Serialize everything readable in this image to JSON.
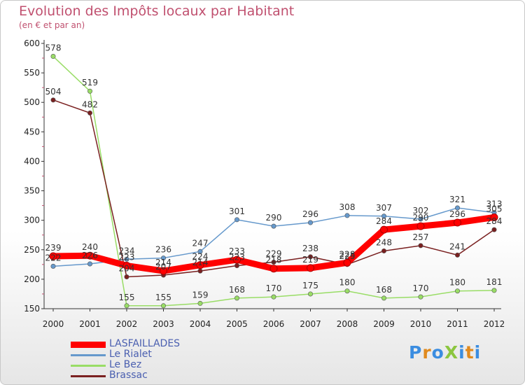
{
  "header": {
    "title": "Evolution des Impôts locaux par Habitant",
    "subtitle": "(en € et par an)"
  },
  "logo": {
    "text": "ProXiti",
    "letters": [
      "P",
      "r",
      "o",
      "X",
      "i",
      "t",
      "i"
    ],
    "colors": [
      "#3b8de0",
      "#e08a1e",
      "#3b8de0",
      "#8cc63f",
      "#3b8de0",
      "#e08a1e",
      "#3b8de0"
    ]
  },
  "chart_data": {
    "type": "line",
    "title": "Evolution des Impôts locaux par Habitant",
    "subtitle": "(en € et par an)",
    "categories": [
      "2000",
      "2001",
      "2002",
      "2003",
      "2004",
      "2005",
      "2006",
      "2007",
      "2008",
      "2009",
      "2010",
      "2011",
      "2012"
    ],
    "ylim": [
      150,
      600
    ],
    "yticks": [
      150,
      200,
      250,
      300,
      350,
      400,
      450,
      500,
      550,
      600
    ],
    "grid": false,
    "legend_position": "bottom-left",
    "series": [
      {
        "name": "LASFAILLADES",
        "color": "#ff0000",
        "emphasis": true,
        "values": [
          239,
          240,
          223,
          214,
          224,
          233,
          218,
          219,
          228,
          284,
          290,
          296,
          305
        ]
      },
      {
        "name": "Le Rialet",
        "color": "#6699cc",
        "values": [
          222,
          226,
          234,
          236,
          247,
          301,
          290,
          296,
          308,
          307,
          302,
          321,
          313
        ]
      },
      {
        "name": "Le Bez",
        "color": "#99dd66",
        "values": [
          578,
          519,
          155,
          155,
          159,
          168,
          170,
          175,
          180,
          168,
          170,
          180,
          181
        ]
      },
      {
        "name": "Brassac",
        "color": "#7a2020",
        "values": [
          504,
          482,
          204,
          207,
          214,
          223,
          229,
          238,
          225,
          248,
          257,
          241,
          284
        ]
      }
    ]
  }
}
